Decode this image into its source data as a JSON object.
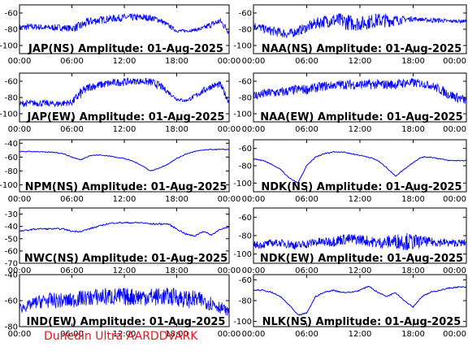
{
  "footer": "Dunedin Ultra AARDDVARK",
  "colors": {
    "trace": "#0000ff",
    "axes": "#000000",
    "footer": "#e8141c"
  },
  "chart_data": [
    {
      "type": "line",
      "title": "JAP(NS) Amplitude: 01-Aug-2025",
      "x_ticks": [
        "00:00",
        "06:00",
        "12:00",
        "18:00",
        "00:00"
      ],
      "y_ticks": [
        -100,
        -80,
        -60
      ],
      "ylim": [
        -110,
        -50
      ],
      "x": [
        "00:00",
        "01:00",
        "02:00",
        "03:00",
        "04:00",
        "05:00",
        "06:00",
        "07:00",
        "08:00",
        "09:00",
        "10:00",
        "11:00",
        "12:00",
        "13:00",
        "14:00",
        "15:00",
        "16:00",
        "17:00",
        "18:00",
        "19:00",
        "20:00",
        "21:00",
        "22:00",
        "23:00",
        "24:00"
      ],
      "series": [
        {
          "y_low": [
            -82,
            -81,
            -81,
            -82,
            -82,
            -82,
            -83,
            -82,
            -76,
            -74,
            -72,
            -71,
            -70,
            -70,
            -70,
            -70,
            -72,
            -78,
            -84,
            -84,
            -83,
            -82,
            -78,
            -74,
            -88
          ],
          "y_high": [
            -74,
            -73,
            -73,
            -74,
            -74,
            -74,
            -75,
            -70,
            -65,
            -64,
            -63,
            -62,
            -61,
            -61,
            -61,
            -62,
            -65,
            -72,
            -80,
            -80,
            -79,
            -76,
            -70,
            -66,
            -78
          ]
        }
      ]
    },
    {
      "type": "line",
      "title": "NAA(NS) Amplitude: 01-Aug-2025",
      "x_ticks": [
        "00:00",
        "06:00",
        "12:00",
        "18:00",
        "00:00"
      ],
      "y_ticks": [
        -100,
        -80,
        -60
      ],
      "ylim": [
        -110,
        -50
      ],
      "x": [
        "00:00",
        "01:00",
        "02:00",
        "03:00",
        "04:00",
        "05:00",
        "06:00",
        "07:00",
        "08:00",
        "09:00",
        "10:00",
        "11:00",
        "12:00",
        "13:00",
        "14:00",
        "15:00",
        "16:00",
        "17:00",
        "18:00",
        "19:00",
        "20:00",
        "21:00",
        "22:00",
        "23:00",
        "24:00"
      ],
      "series": [
        {
          "y_low": [
            -80,
            -84,
            -88,
            -90,
            -92,
            -88,
            -84,
            -80,
            -78,
            -78,
            -80,
            -82,
            -82,
            -80,
            -78,
            -78,
            -76,
            -72,
            -70,
            -70,
            -72,
            -72,
            -72,
            -72,
            -72
          ],
          "y_high": [
            -70,
            -74,
            -76,
            -78,
            -80,
            -76,
            -72,
            -66,
            -62,
            -60,
            -60,
            -62,
            -64,
            -62,
            -60,
            -60,
            -62,
            -64,
            -64,
            -66,
            -66,
            -66,
            -68,
            -68,
            -68
          ]
        }
      ]
    },
    {
      "type": "line",
      "title": "JAP(EW) Amplitude: 01-Aug-2025",
      "x_ticks": [
        "00:00",
        "06:00",
        "12:00",
        "18:00",
        "00:00"
      ],
      "y_ticks": [
        -100,
        -80,
        -60
      ],
      "ylim": [
        -110,
        -50
      ],
      "x": [
        "00:00",
        "01:00",
        "02:00",
        "03:00",
        "04:00",
        "05:00",
        "06:00",
        "07:00",
        "08:00",
        "09:00",
        "10:00",
        "11:00",
        "12:00",
        "13:00",
        "14:00",
        "15:00",
        "16:00",
        "17:00",
        "18:00",
        "19:00",
        "20:00",
        "21:00",
        "22:00",
        "23:00",
        "24:00"
      ],
      "series": [
        {
          "y_low": [
            -92,
            -91,
            -91,
            -91,
            -92,
            -91,
            -90,
            -82,
            -72,
            -70,
            -68,
            -66,
            -66,
            -64,
            -64,
            -66,
            -70,
            -76,
            -84,
            -86,
            -82,
            -76,
            -70,
            -68,
            -90
          ],
          "y_high": [
            -84,
            -83,
            -83,
            -83,
            -84,
            -83,
            -82,
            -68,
            -62,
            -60,
            -58,
            -57,
            -56,
            -56,
            -56,
            -56,
            -60,
            -70,
            -80,
            -82,
            -76,
            -68,
            -62,
            -60,
            -82
          ]
        }
      ]
    },
    {
      "type": "line",
      "title": "NAA(EW) Amplitude: 01-Aug-2025",
      "x_ticks": [
        "00:00",
        "06:00",
        "12:00",
        "18:00",
        "00:00"
      ],
      "y_ticks": [
        -100,
        -80,
        -60
      ],
      "ylim": [
        -110,
        -50
      ],
      "x": [
        "00:00",
        "01:00",
        "02:00",
        "03:00",
        "04:00",
        "05:00",
        "06:00",
        "07:00",
        "08:00",
        "09:00",
        "10:00",
        "11:00",
        "12:00",
        "13:00",
        "14:00",
        "15:00",
        "16:00",
        "17:00",
        "18:00",
        "19:00",
        "20:00",
        "21:00",
        "22:00",
        "23:00",
        "24:00"
      ],
      "series": [
        {
          "y_low": [
            -84,
            -82,
            -80,
            -80,
            -78,
            -76,
            -76,
            -74,
            -72,
            -70,
            -70,
            -70,
            -70,
            -70,
            -70,
            -70,
            -70,
            -68,
            -68,
            -68,
            -70,
            -76,
            -82,
            -86,
            -90
          ],
          "y_high": [
            -72,
            -70,
            -68,
            -68,
            -66,
            -64,
            -64,
            -62,
            -60,
            -60,
            -58,
            -58,
            -58,
            -58,
            -58,
            -58,
            -58,
            -56,
            -56,
            -58,
            -60,
            -64,
            -70,
            -74,
            -78
          ]
        }
      ]
    },
    {
      "type": "line",
      "title": "NPM(NS) Amplitude: 01-Aug-2025",
      "x_ticks": [
        "00:00",
        "06:00",
        "12:00",
        "18:00",
        "00:00"
      ],
      "y_ticks": [
        -100,
        -80,
        -60,
        -40
      ],
      "ylim": [
        -110,
        -35
      ],
      "x": [
        "00:00",
        "01:00",
        "02:00",
        "03:00",
        "04:00",
        "05:00",
        "06:00",
        "07:00",
        "08:00",
        "09:00",
        "10:00",
        "11:00",
        "12:00",
        "13:00",
        "14:00",
        "15:00",
        "16:00",
        "17:00",
        "18:00",
        "19:00",
        "20:00",
        "21:00",
        "22:00",
        "23:00",
        "24:00"
      ],
      "series": [
        {
          "y": [
            -52,
            -52,
            -52,
            -53,
            -53,
            -55,
            -60,
            -64,
            -58,
            -57,
            -58,
            -60,
            -62,
            -66,
            -72,
            -80,
            -76,
            -70,
            -62,
            -56,
            -52,
            -50,
            -49,
            -49,
            -49
          ]
        }
      ]
    },
    {
      "type": "line",
      "title": "NDK(NS) Amplitude: 01-Aug-2025",
      "x_ticks": [
        "00:00",
        "06:00",
        "12:00",
        "18:00",
        "00:00"
      ],
      "y_ticks": [
        -100,
        -80,
        -60
      ],
      "ylim": [
        -110,
        -50
      ],
      "x": [
        "00:00",
        "01:00",
        "02:00",
        "03:00",
        "04:00",
        "05:00",
        "06:00",
        "07:00",
        "08:00",
        "09:00",
        "10:00",
        "11:00",
        "12:00",
        "13:00",
        "14:00",
        "15:00",
        "16:00",
        "17:00",
        "18:00",
        "19:00",
        "20:00",
        "21:00",
        "22:00",
        "23:00",
        "24:00"
      ],
      "series": [
        {
          "y": [
            -72,
            -74,
            -78,
            -84,
            -94,
            -100,
            -80,
            -70,
            -66,
            -64,
            -64,
            -66,
            -68,
            -70,
            -74,
            -82,
            -92,
            -84,
            -76,
            -70,
            -70,
            -72,
            -74,
            -74,
            -74
          ]
        }
      ]
    },
    {
      "type": "line",
      "title": "NWC(NS) Amplitude: 01-Aug-2025",
      "x_ticks": [
        "00:00",
        "06:00",
        "12:00",
        "18:00",
        "00:00"
      ],
      "y_ticks": [
        -70,
        -60,
        -50,
        -40,
        -30
      ],
      "ylim": [
        -70,
        -25
      ],
      "x": [
        "00:00",
        "01:00",
        "02:00",
        "03:00",
        "04:00",
        "05:00",
        "06:00",
        "07:00",
        "08:00",
        "09:00",
        "10:00",
        "11:00",
        "12:00",
        "13:00",
        "14:00",
        "15:00",
        "16:00",
        "17:00",
        "18:00",
        "19:00",
        "20:00",
        "21:00",
        "22:00",
        "23:00",
        "24:00"
      ],
      "series": [
        {
          "y": [
            -44,
            -43,
            -42,
            -42,
            -42,
            -42,
            -44,
            -44,
            -42,
            -40,
            -38,
            -37,
            -37,
            -37,
            -37,
            -38,
            -38,
            -38,
            -42,
            -46,
            -48,
            -44,
            -47,
            -42,
            -41
          ]
        }
      ]
    },
    {
      "type": "line",
      "title": "NDK(EW) Amplitude: 01-Aug-2025",
      "x_ticks": [
        "00:00",
        "06:00",
        "12:00",
        "18:00",
        "00:00"
      ],
      "y_ticks": [
        -100,
        -80,
        -60
      ],
      "ylim": [
        -110,
        -50
      ],
      "x": [
        "00:00",
        "01:00",
        "02:00",
        "03:00",
        "04:00",
        "05:00",
        "06:00",
        "07:00",
        "08:00",
        "09:00",
        "10:00",
        "11:00",
        "12:00",
        "13:00",
        "14:00",
        "15:00",
        "16:00",
        "17:00",
        "18:00",
        "19:00",
        "20:00",
        "21:00",
        "22:00",
        "23:00",
        "24:00"
      ],
      "series": [
        {
          "y_low": [
            -94,
            -94,
            -92,
            -92,
            -94,
            -96,
            -94,
            -92,
            -92,
            -92,
            -90,
            -90,
            -90,
            -92,
            -94,
            -94,
            -94,
            -96,
            -96,
            -92,
            -92,
            -92,
            -92,
            -92,
            -92
          ],
          "y_high": [
            -86,
            -86,
            -84,
            -84,
            -84,
            -86,
            -84,
            -82,
            -82,
            -80,
            -78,
            -78,
            -78,
            -80,
            -82,
            -80,
            -78,
            -76,
            -78,
            -80,
            -82,
            -82,
            -84,
            -84,
            -84
          ]
        }
      ]
    },
    {
      "type": "line",
      "title": "IND(EW) Amplitude: 01-Aug-2025",
      "x_ticks": [
        "00:00",
        "06:00",
        "12:00",
        "18:00",
        "00:00"
      ],
      "y_ticks": [
        -80,
        -60,
        -40
      ],
      "ylim": [
        -80,
        -40
      ],
      "x": [
        "00:00",
        "01:00",
        "02:00",
        "03:00",
        "04:00",
        "05:00",
        "06:00",
        "07:00",
        "08:00",
        "09:00",
        "10:00",
        "11:00",
        "12:00",
        "13:00",
        "14:00",
        "15:00",
        "16:00",
        "17:00",
        "18:00",
        "19:00",
        "20:00",
        "21:00",
        "22:00",
        "23:00",
        "24:00"
      ],
      "series": [
        {
          "y_low": [
            -70,
            -68,
            -66,
            -66,
            -66,
            -66,
            -66,
            -64,
            -64,
            -64,
            -64,
            -64,
            -64,
            -64,
            -64,
            -64,
            -64,
            -64,
            -64,
            -66,
            -66,
            -66,
            -68,
            -70,
            -72
          ],
          "y_high": [
            -62,
            -60,
            -56,
            -54,
            -54,
            -54,
            -54,
            -52,
            -52,
            -50,
            -50,
            -50,
            -50,
            -50,
            -50,
            -50,
            -50,
            -50,
            -50,
            -52,
            -52,
            -54,
            -56,
            -60,
            -66
          ]
        }
      ]
    },
    {
      "type": "line",
      "title": "NLK(NS) Amplitude: 01-Aug-2025",
      "x_ticks": [
        "00:00",
        "06:00",
        "12:00",
        "18:00",
        "00:00"
      ],
      "y_ticks": [
        -100,
        -80,
        -60
      ],
      "ylim": [
        -105,
        -55
      ],
      "x": [
        "00:00",
        "01:00",
        "02:00",
        "03:00",
        "04:00",
        "05:00",
        "06:00",
        "07:00",
        "08:00",
        "09:00",
        "10:00",
        "11:00",
        "12:00",
        "13:00",
        "14:00",
        "15:00",
        "16:00",
        "17:00",
        "18:00",
        "19:00",
        "20:00",
        "21:00",
        "22:00",
        "23:00",
        "24:00"
      ],
      "series": [
        {
          "y": [
            -70,
            -70,
            -72,
            -76,
            -84,
            -94,
            -92,
            -76,
            -72,
            -70,
            -72,
            -72,
            -70,
            -66,
            -72,
            -76,
            -72,
            -80,
            -86,
            -76,
            -72,
            -70,
            -68,
            -67,
            -67
          ]
        }
      ]
    }
  ]
}
